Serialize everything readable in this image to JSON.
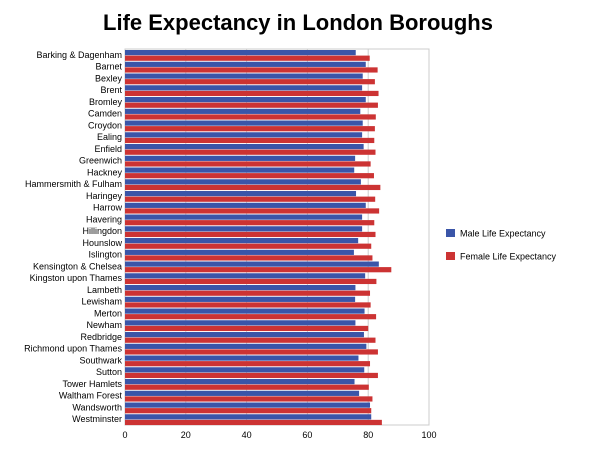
{
  "chart_data": {
    "type": "bar",
    "orientation": "horizontal",
    "title": "Life Expectancy in London Boroughs",
    "categories": [
      "Barking & Dagenham",
      "Barnet",
      "Bexley",
      "Brent",
      "Bromley",
      "Camden",
      "Croydon",
      "Ealing",
      "Enfield",
      "Greenwich",
      "Hackney",
      "Hammersmith & Fulham",
      "Haringey",
      "Harrow",
      "Havering",
      "Hillingdon",
      "Hounslow",
      "Islington",
      "Kensington & Chelsea",
      "Kingston upon Thames",
      "Lambeth",
      "Lewisham",
      "Merton",
      "Newham",
      "Redbridge",
      "Richmond upon Thames",
      "Southwark",
      "Sutton",
      "Tower Hamlets",
      "Waltham Forest",
      "Wandsworth",
      "Westminster"
    ],
    "series": [
      {
        "name": "Male Life Expectancy",
        "color": "#3a55a8",
        "values": [
          75.9,
          79.2,
          78.2,
          78.0,
          79.2,
          77.4,
          78.2,
          78.0,
          78.5,
          75.7,
          75.4,
          77.6,
          76.0,
          79.2,
          78.0,
          78.0,
          76.7,
          75.3,
          83.5,
          79.0,
          75.8,
          75.7,
          78.8,
          75.8,
          78.6,
          79.4,
          76.8,
          78.7,
          75.5,
          77.0,
          80.6,
          81.0
        ]
      },
      {
        "name": "Female Life Expectancy",
        "color": "#cc3333",
        "values": [
          80.5,
          83.1,
          82.2,
          83.4,
          83.2,
          82.5,
          82.2,
          82.0,
          82.4,
          80.8,
          81.9,
          84.0,
          82.3,
          83.6,
          82.0,
          82.4,
          81.0,
          81.4,
          87.6,
          82.7,
          80.6,
          80.8,
          82.6,
          80.0,
          82.4,
          83.2,
          80.6,
          83.2,
          80.2,
          81.4,
          81.0,
          84.5
        ]
      }
    ],
    "xlabel": "",
    "ylabel": "",
    "xlim": [
      0,
      100
    ],
    "xticks": [
      0,
      20,
      40,
      60,
      80,
      100
    ],
    "grid": "vertical",
    "legend": "right"
  }
}
